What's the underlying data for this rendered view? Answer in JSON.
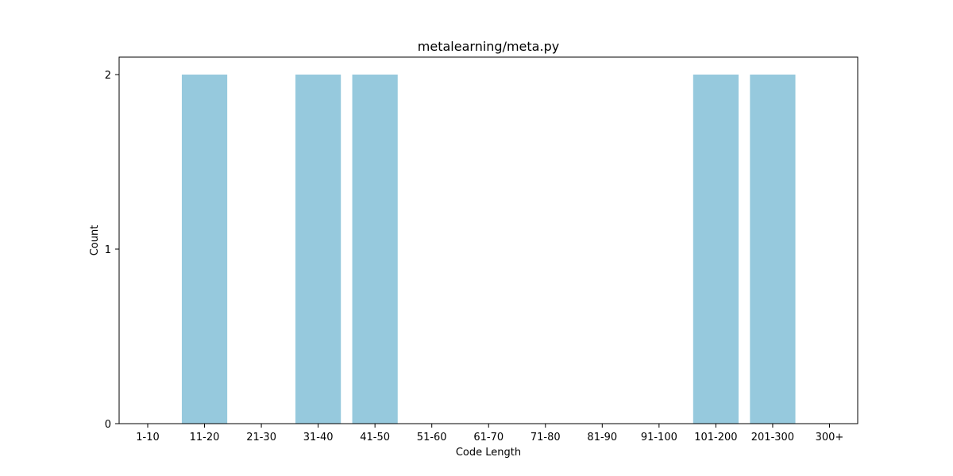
{
  "chart_data": {
    "type": "bar",
    "title": "metalearning/meta.py",
    "xlabel": "Code Length",
    "ylabel": "Count",
    "categories": [
      "1-10",
      "11-20",
      "21-30",
      "31-40",
      "41-50",
      "51-60",
      "61-70",
      "71-80",
      "81-90",
      "91-100",
      "101-200",
      "201-300",
      "300+"
    ],
    "values": [
      0,
      2,
      0,
      2,
      2,
      0,
      0,
      0,
      0,
      0,
      2,
      2,
      0
    ],
    "ylim": [
      0,
      2.1
    ],
    "yticks": [
      0,
      1,
      2
    ],
    "grid": false,
    "legend": "none",
    "bar_color": "#96c9dd"
  }
}
